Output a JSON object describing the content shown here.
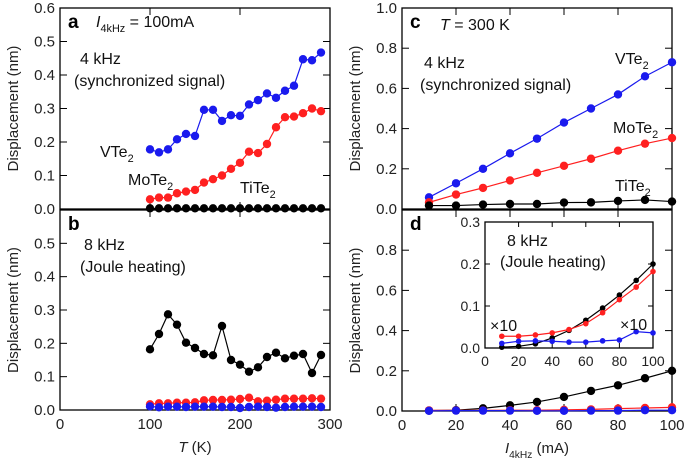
{
  "chart_data": [
    {
      "panel": "a",
      "type": "line",
      "xlim": [
        0,
        300
      ],
      "ylim": [
        0,
        0.6
      ],
      "xticks": [
        0,
        100,
        200,
        300
      ],
      "yticks": [
        0.0,
        0.1,
        0.2,
        0.3,
        0.4,
        0.5,
        0.6
      ],
      "ytick_labels": [
        "0.0",
        "0.1",
        "0.2",
        "0.3",
        "0.4",
        "0.5",
        "0.6"
      ],
      "ylabel": "Displacement (nm)",
      "annotations": {
        "current": [
          {
            "t": "I",
            "italic": true
          },
          {
            "t": "4kHz",
            "sub": true
          },
          {
            "t": " = 100mA"
          }
        ],
        "freq": "4 kHz",
        "note": "(synchronized signal)"
      },
      "x": [
        100,
        110,
        120,
        130,
        140,
        150,
        160,
        170,
        180,
        190,
        200,
        210,
        220,
        230,
        240,
        250,
        260,
        270,
        280,
        290
      ],
      "series": [
        {
          "name": "VTe2",
          "color": "#1a1aee",
          "values": [
            0.178,
            0.169,
            0.178,
            0.208,
            0.224,
            0.218,
            0.296,
            0.296,
            0.263,
            0.28,
            0.278,
            0.312,
            0.325,
            0.345,
            0.332,
            0.353,
            0.368,
            0.447,
            0.444,
            0.467
          ]
        },
        {
          "name": "MoTe2",
          "color": "#ff2020",
          "values": [
            0.029,
            0.034,
            0.034,
            0.047,
            0.052,
            0.057,
            0.079,
            0.089,
            0.1,
            0.12,
            0.138,
            0.171,
            0.167,
            0.194,
            0.244,
            0.274,
            0.276,
            0.286,
            0.3,
            0.292
          ]
        },
        {
          "name": "TiTe2",
          "color": "#000000",
          "values": [
            0.002,
            0.002,
            0.002,
            0.002,
            0.002,
            0.002,
            0.002,
            0.002,
            0.002,
            0.002,
            0.002,
            0.002,
            0.002,
            0.002,
            0.002,
            0.002,
            0.002,
            0.002,
            0.002,
            0.002
          ]
        }
      ]
    },
    {
      "panel": "b",
      "type": "line",
      "xlim": [
        0,
        300
      ],
      "ylim": [
        0,
        0.6
      ],
      "xticks": [
        0,
        100,
        200,
        300
      ],
      "xtick_labels": [
        "0",
        "100",
        "200",
        "300"
      ],
      "yticks": [
        0.0,
        0.1,
        0.2,
        0.3,
        0.4,
        0.5
      ],
      "ytick_labels": [
        "0.0",
        "0.1",
        "0.2",
        "0.3",
        "0.4",
        "0.5"
      ],
      "xlabel": [
        {
          "t": "T",
          "italic": true
        },
        {
          "t": " (K)"
        }
      ],
      "ylabel": "Displacement (nm)",
      "annotations": {
        "freq": "8 kHz",
        "note": "(Joule heating)"
      },
      "x": [
        100,
        110,
        120,
        130,
        140,
        150,
        160,
        170,
        180,
        190,
        200,
        210,
        220,
        230,
        240,
        250,
        260,
        270,
        280,
        290
      ],
      "series": [
        {
          "name": "TiTe2",
          "color": "#000000",
          "values": [
            0.182,
            0.228,
            0.287,
            0.256,
            0.202,
            0.186,
            0.168,
            0.164,
            0.252,
            0.15,
            0.136,
            0.115,
            0.128,
            0.159,
            0.172,
            0.155,
            0.163,
            0.168,
            0.111,
            0.165
          ]
        },
        {
          "name": "MoTe2",
          "color": "#ff2020",
          "values": [
            0.017,
            0.02,
            0.02,
            0.022,
            0.022,
            0.023,
            0.029,
            0.03,
            0.03,
            0.031,
            0.033,
            0.037,
            0.026,
            0.028,
            0.031,
            0.034,
            0.034,
            0.034,
            0.035,
            0.034
          ]
        },
        {
          "name": "VTe2",
          "color": "#1a1aee",
          "values": [
            0.011,
            0.008,
            0.01,
            0.01,
            0.009,
            0.01,
            0.01,
            0.01,
            0.009,
            0.009,
            0.006,
            0.009,
            0.01,
            0.009,
            0.007,
            0.009,
            0.01,
            0.01,
            0.01,
            0.009
          ]
        }
      ]
    },
    {
      "panel": "c",
      "type": "line",
      "xlim": [
        0,
        100
      ],
      "ylim": [
        0,
        1.0
      ],
      "xticks": [
        0,
        20,
        40,
        60,
        80,
        100
      ],
      "yticks": [
        0.0,
        0.2,
        0.4,
        0.6,
        0.8,
        1.0
      ],
      "ytick_labels": [
        "0.0",
        "0.2",
        "0.4",
        "0.6",
        "0.8",
        "1.0"
      ],
      "ylabel": "Displacement (nm)",
      "annotations": {
        "temperature": [
          {
            "t": "T",
            "italic": true
          },
          {
            "t": " = 300 K"
          }
        ],
        "freq": "4 kHz",
        "note": "(synchronized signal)"
      },
      "x": [
        10,
        20,
        30,
        40,
        50,
        60,
        70,
        80,
        90,
        100
      ],
      "series": [
        {
          "name": "VTe2",
          "color": "#1a1aee",
          "values": [
            0.058,
            0.128,
            0.2,
            0.277,
            0.35,
            0.43,
            0.5,
            0.57,
            0.66,
            0.73
          ]
        },
        {
          "name": "MoTe2",
          "color": "#ff2020",
          "values": [
            0.033,
            0.072,
            0.105,
            0.142,
            0.18,
            0.215,
            0.25,
            0.29,
            0.325,
            0.353
          ]
        },
        {
          "name": "TiTe2",
          "color": "#000000",
          "values": [
            0.017,
            0.017,
            0.022,
            0.025,
            0.025,
            0.032,
            0.033,
            0.04,
            0.045,
            0.037
          ]
        }
      ]
    },
    {
      "panel": "d",
      "type": "line",
      "xlim": [
        0,
        100
      ],
      "ylim": [
        0,
        1.0
      ],
      "xticks": [
        0,
        20,
        40,
        60,
        80,
        100
      ],
      "xtick_labels": [
        "0",
        "20",
        "40",
        "60",
        "80",
        "100"
      ],
      "yticks": [
        0.0,
        0.2,
        0.4,
        0.6,
        0.8
      ],
      "ytick_labels": [
        "0.0",
        "0.2",
        "0.4",
        "0.6",
        "0.8"
      ],
      "xlabel": [
        {
          "t": "I",
          "italic": true
        },
        {
          "t": "4kHz",
          "sub": true
        },
        {
          "t": " (mA)"
        }
      ],
      "ylabel": "Displacement (nm)",
      "x": [
        10,
        20,
        30,
        40,
        50,
        60,
        70,
        80,
        90,
        100
      ],
      "series": [
        {
          "name": "TiTe2",
          "color": "#000000",
          "values": [
            0.002,
            0.004,
            0.013,
            0.028,
            0.045,
            0.07,
            0.1,
            0.128,
            0.163,
            0.2
          ]
        },
        {
          "name": "MoTe2",
          "color": "#ff2020",
          "values": [
            0.003,
            0.003,
            0.003,
            0.004,
            0.004,
            0.006,
            0.008,
            0.012,
            0.015,
            0.018
          ]
        },
        {
          "name": "VTe2",
          "color": "#1a1aee",
          "values": [
            0.001,
            0.002,
            0.002,
            0.002,
            0.001,
            0.001,
            0.002,
            0.002,
            0.004,
            0.004
          ]
        }
      ],
      "inset": {
        "type": "line",
        "xlim": [
          0,
          100
        ],
        "ylim": [
          0,
          0.3
        ],
        "xticks": [
          0,
          20,
          40,
          60,
          80,
          100
        ],
        "xtick_labels": [
          "0",
          "20",
          "40",
          "60",
          "80",
          "100"
        ],
        "yticks": [
          0.0,
          0.1,
          0.2,
          0.3
        ],
        "ytick_labels": [
          "0.0",
          "0.1",
          "0.2",
          "0.3"
        ],
        "annotations": {
          "freq": "8 kHz",
          "note": "(Joule heating)",
          "red_scale": "×10",
          "blue_scale": "×10"
        },
        "x": [
          10,
          20,
          30,
          40,
          50,
          60,
          70,
          80,
          90,
          100
        ],
        "series": [
          {
            "name": "TiTe2",
            "color": "#000000",
            "values": [
              0.002,
              0.004,
              0.01,
              0.024,
              0.042,
              0.066,
              0.095,
              0.126,
              0.161,
              0.2
            ]
          },
          {
            "name": "MoTe2 ×10",
            "color": "#ff2020",
            "values": [
              0.028,
              0.028,
              0.031,
              0.036,
              0.044,
              0.058,
              0.084,
              0.115,
              0.145,
              0.182
            ]
          },
          {
            "name": "VTe2 ×10",
            "color": "#1a1aee",
            "values": [
              0.011,
              0.016,
              0.017,
              0.016,
              0.014,
              0.014,
              0.017,
              0.019,
              0.039,
              0.036
            ]
          }
        ]
      }
    }
  ]
}
